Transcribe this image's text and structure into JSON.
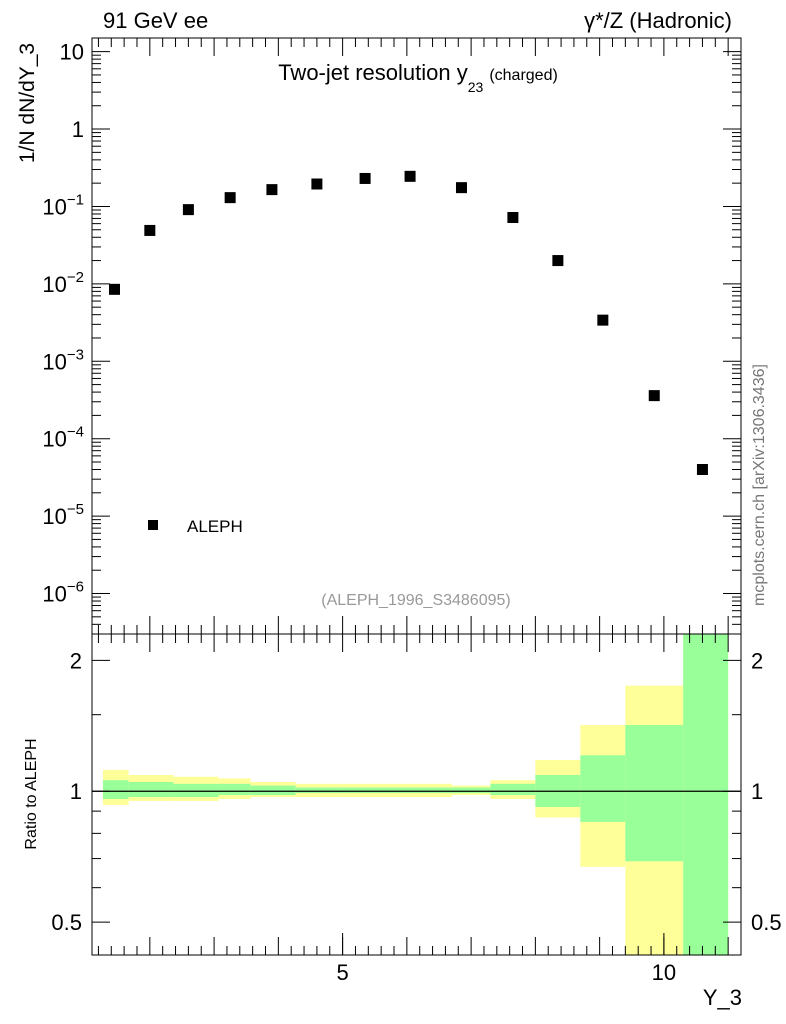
{
  "header": {
    "left": "91 GeV ee",
    "right": "γ*/Z (Hadronic)"
  },
  "watermark": "mcplots.cern.ch [arXiv:1306.3436]",
  "reference": "(ALEPH_1996_S3486095)",
  "colors": {
    "band_outer": "#ffff99",
    "band_inner": "#99ff99",
    "marker": "#000000"
  },
  "chart_data": [
    {
      "type": "scatter",
      "title": "Two-jet resolution y",
      "title_subscript": "23",
      "title_suffix": "(charged)",
      "ylabel": "1/N dN/dY_3",
      "ylog": true,
      "xlim": [
        1.1,
        11.2
      ],
      "ylim": [
        3e-07,
        15
      ],
      "y_ticks": [
        {
          "value": 10,
          "mantissa": "10",
          "exp": ""
        },
        {
          "value": 1,
          "mantissa": "1",
          "exp": ""
        },
        {
          "value": 0.1,
          "mantissa": "10",
          "exp": "−1"
        },
        {
          "value": 0.01,
          "mantissa": "10",
          "exp": "−2"
        },
        {
          "value": 0.001,
          "mantissa": "10",
          "exp": "−3"
        },
        {
          "value": 0.0001,
          "mantissa": "10",
          "exp": "−4"
        },
        {
          "value": 1e-05,
          "mantissa": "10",
          "exp": "−5"
        },
        {
          "value": 1e-06,
          "mantissa": "10",
          "exp": "−6"
        }
      ],
      "series": [
        {
          "name": "ALEPH",
          "x": [
            1.45,
            2.0,
            2.6,
            3.25,
            3.9,
            4.6,
            5.35,
            6.05,
            6.85,
            7.65,
            8.35,
            9.05,
            9.85,
            10.6
          ],
          "y": [
            0.0085,
            0.049,
            0.091,
            0.13,
            0.165,
            0.195,
            0.23,
            0.245,
            0.175,
            0.072,
            0.02,
            0.0034,
            0.00036,
            4e-05
          ]
        }
      ],
      "legend_position": "bottom-left"
    },
    {
      "type": "area",
      "ylabel": "Ratio to ALEPH",
      "xlabel": "Y_3",
      "xlim": [
        1.1,
        11.2
      ],
      "ylim": [
        0.42,
        2.3
      ],
      "x_ticks": [
        5,
        10
      ],
      "y_ticks": [
        0.5,
        1,
        2
      ],
      "reference_line": 1,
      "bins": [
        {
          "x0": 1.27,
          "x1": 1.67,
          "outer": [
            0.93,
            1.12
          ],
          "inner": [
            0.96,
            1.06
          ]
        },
        {
          "x0": 1.67,
          "x1": 2.37,
          "outer": [
            0.95,
            1.09
          ],
          "inner": [
            0.97,
            1.05
          ]
        },
        {
          "x0": 2.37,
          "x1": 3.07,
          "outer": [
            0.95,
            1.08
          ],
          "inner": [
            0.97,
            1.04
          ]
        },
        {
          "x0": 3.07,
          "x1": 3.57,
          "outer": [
            0.96,
            1.07
          ],
          "inner": [
            0.98,
            1.04
          ]
        },
        {
          "x0": 3.57,
          "x1": 4.27,
          "outer": [
            0.97,
            1.05
          ],
          "inner": [
            0.98,
            1.03
          ]
        },
        {
          "x0": 4.27,
          "x1": 5.0,
          "outer": [
            0.97,
            1.04
          ],
          "inner": [
            0.99,
            1.02
          ]
        },
        {
          "x0": 5.0,
          "x1": 6.7,
          "outer": [
            0.97,
            1.04
          ],
          "inner": [
            0.99,
            1.02
          ]
        },
        {
          "x0": 6.7,
          "x1": 7.3,
          "outer": [
            0.98,
            1.03
          ],
          "inner": [
            0.99,
            1.02
          ]
        },
        {
          "x0": 7.3,
          "x1": 8.0,
          "outer": [
            0.96,
            1.06
          ],
          "inner": [
            0.98,
            1.04
          ]
        },
        {
          "x0": 8.0,
          "x1": 8.7,
          "outer": [
            0.87,
            1.18
          ],
          "inner": [
            0.92,
            1.09
          ]
        },
        {
          "x0": 8.7,
          "x1": 9.4,
          "outer": [
            0.67,
            1.42
          ],
          "inner": [
            0.85,
            1.21
          ]
        },
        {
          "x0": 9.4,
          "x1": 10.3,
          "outer": [
            0.3,
            1.75
          ],
          "inner": [
            0.69,
            1.42
          ]
        },
        {
          "x0": 10.3,
          "x1": 11.0,
          "outer": [
            0.3,
            2.5
          ],
          "inner": [
            0.3,
            2.5
          ]
        }
      ]
    }
  ]
}
